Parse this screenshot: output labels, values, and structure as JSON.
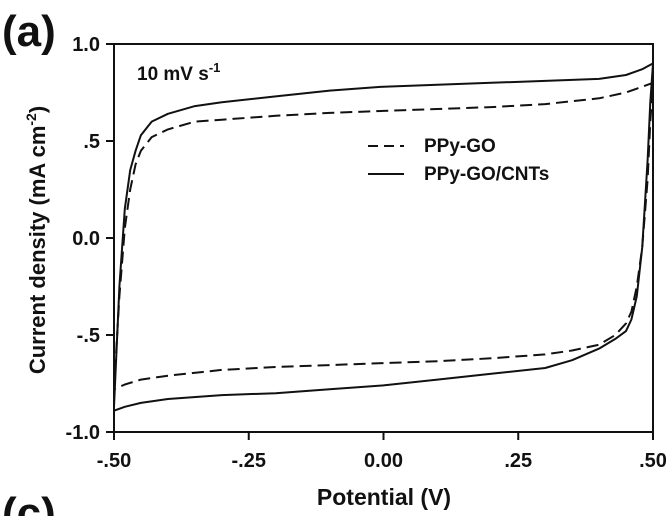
{
  "panel_label": "(a)",
  "next_panel_label_partial": "(c)",
  "chart_data": {
    "type": "line",
    "annotation": "10 mV s",
    "annotation_sup": "-1",
    "xlabel": "Potential (V)",
    "ylabel_main": "Current density (mA cm",
    "ylabel_sup": "-2",
    "ylabel_end": ")",
    "xlim": [
      -0.5,
      0.5
    ],
    "ylim": [
      -1.0,
      1.0
    ],
    "x_ticks": [
      -0.5,
      -0.25,
      0.0,
      0.25,
      0.5
    ],
    "x_tick_labels": [
      "-.50",
      "-.25",
      "0.00",
      ".25",
      ".50"
    ],
    "y_ticks": [
      -1.0,
      -0.5,
      0.0,
      0.5,
      1.0
    ],
    "y_tick_labels": [
      "-1.0",
      "-.5",
      "0.0",
      ".5",
      "1.0"
    ],
    "grid": false,
    "legend_position": "top-right",
    "series": [
      {
        "name": "PPy-GO",
        "style": "dashed",
        "color": "#111111",
        "x": [
          -0.5,
          -0.49,
          -0.48,
          -0.47,
          -0.46,
          -0.45,
          -0.43,
          -0.4,
          -0.35,
          -0.3,
          -0.2,
          -0.1,
          0.0,
          0.1,
          0.2,
          0.3,
          0.4,
          0.45,
          0.48,
          0.5,
          0.495,
          0.49,
          0.48,
          0.47,
          0.46,
          0.45,
          0.43,
          0.4,
          0.35,
          0.3,
          0.2,
          0.1,
          0.0,
          -0.1,
          -0.2,
          -0.3,
          -0.4,
          -0.45,
          -0.48,
          -0.5
        ],
        "y": [
          -0.78,
          -0.3,
          0.05,
          0.25,
          0.38,
          0.45,
          0.52,
          0.56,
          0.6,
          0.61,
          0.63,
          0.645,
          0.655,
          0.665,
          0.675,
          0.69,
          0.72,
          0.75,
          0.78,
          0.8,
          0.6,
          0.3,
          -0.05,
          -0.25,
          -0.38,
          -0.44,
          -0.5,
          -0.55,
          -0.58,
          -0.6,
          -0.62,
          -0.635,
          -0.645,
          -0.655,
          -0.665,
          -0.68,
          -0.71,
          -0.73,
          -0.755,
          -0.78
        ]
      },
      {
        "name": "PPy-GO/CNTs",
        "style": "solid",
        "color": "#111111",
        "x": [
          -0.5,
          -0.49,
          -0.48,
          -0.47,
          -0.46,
          -0.45,
          -0.43,
          -0.4,
          -0.35,
          -0.3,
          -0.2,
          -0.1,
          0.0,
          0.1,
          0.2,
          0.3,
          0.4,
          0.45,
          0.48,
          0.5,
          0.495,
          0.49,
          0.48,
          0.47,
          0.46,
          0.45,
          0.43,
          0.4,
          0.35,
          0.3,
          0.2,
          0.1,
          0.0,
          -0.1,
          -0.2,
          -0.3,
          -0.4,
          -0.45,
          -0.48,
          -0.5
        ],
        "y": [
          -0.87,
          -0.25,
          0.15,
          0.35,
          0.45,
          0.53,
          0.6,
          0.64,
          0.68,
          0.7,
          0.73,
          0.76,
          0.78,
          0.79,
          0.8,
          0.81,
          0.82,
          0.84,
          0.87,
          0.9,
          0.7,
          0.4,
          -0.05,
          -0.3,
          -0.42,
          -0.48,
          -0.52,
          -0.57,
          -0.63,
          -0.67,
          -0.7,
          -0.73,
          -0.76,
          -0.78,
          -0.8,
          -0.81,
          -0.83,
          -0.85,
          -0.87,
          -0.89
        ]
      }
    ]
  }
}
